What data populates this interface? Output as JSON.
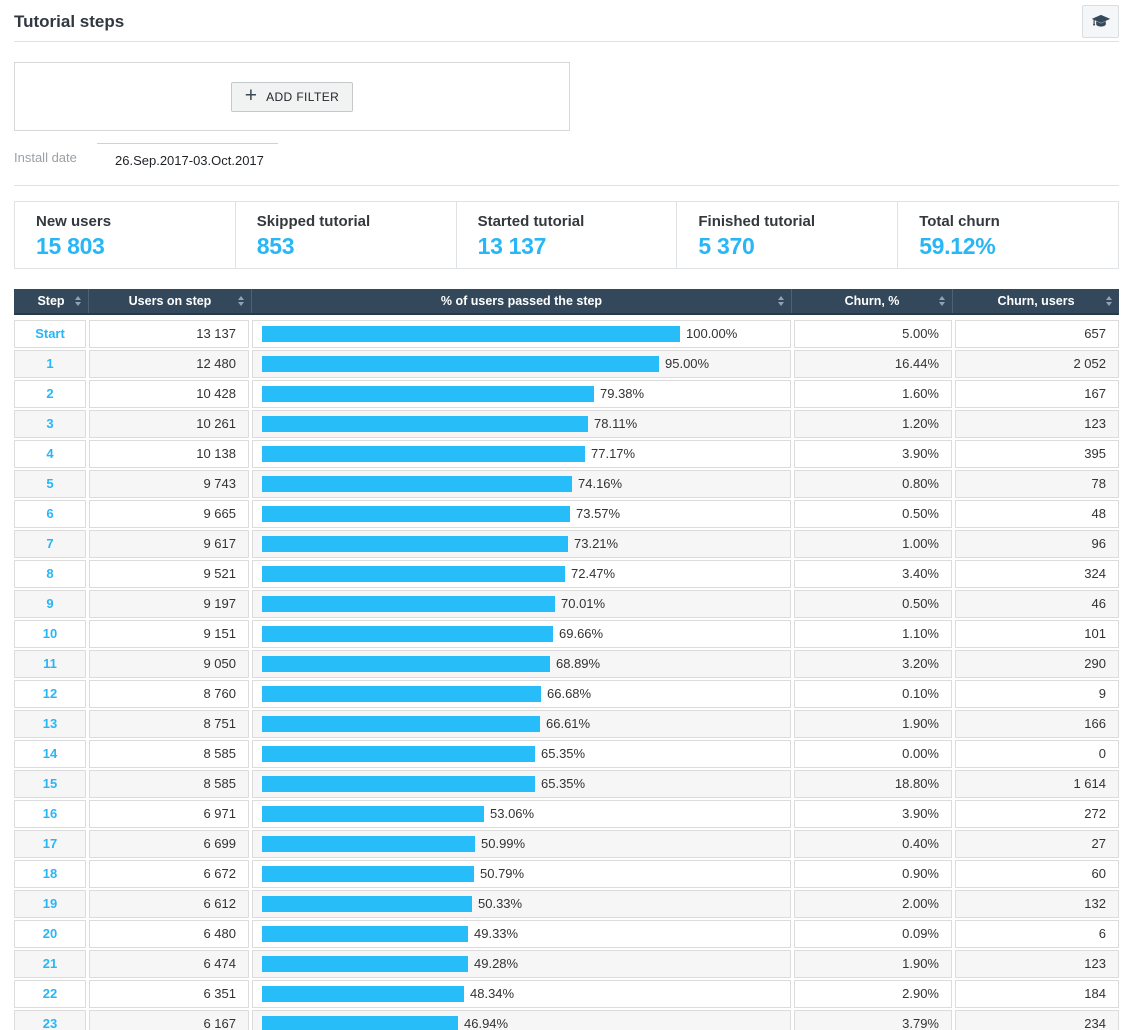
{
  "header": {
    "title": "Tutorial steps",
    "help_icon": "graduation-cap"
  },
  "filters": {
    "add_filter": "ADD FILTER",
    "install_date": {
      "label": "Install date",
      "value": "26.Sep.2017-03.Oct.2017"
    }
  },
  "summary_cards": [
    {
      "label": "New users",
      "value": "15 803"
    },
    {
      "label": "Skipped tutorial",
      "value": "853"
    },
    {
      "label": "Started tutorial",
      "value": "13 137"
    },
    {
      "label": "Finished tutorial",
      "value": "5 370"
    },
    {
      "label": "Total churn",
      "value": "59.12%"
    }
  ],
  "table": {
    "columns": [
      {
        "label": "Step"
      },
      {
        "label": "Users on step"
      },
      {
        "label": "% of users passed the step"
      },
      {
        "label": "Churn, %"
      },
      {
        "label": "Churn, users"
      }
    ],
    "rows": [
      {
        "step": "Start",
        "users_on_step": "13 137",
        "passed_pct": 100.0,
        "passed_label": "100.00%",
        "churn_pct": "5.00%",
        "churn_users": "657"
      },
      {
        "step": "1",
        "users_on_step": "12 480",
        "passed_pct": 95.0,
        "passed_label": "95.00%",
        "churn_pct": "16.44%",
        "churn_users": "2 052"
      },
      {
        "step": "2",
        "users_on_step": "10 428",
        "passed_pct": 79.38,
        "passed_label": "79.38%",
        "churn_pct": "1.60%",
        "churn_users": "167"
      },
      {
        "step": "3",
        "users_on_step": "10 261",
        "passed_pct": 78.11,
        "passed_label": "78.11%",
        "churn_pct": "1.20%",
        "churn_users": "123"
      },
      {
        "step": "4",
        "users_on_step": "10 138",
        "passed_pct": 77.17,
        "passed_label": "77.17%",
        "churn_pct": "3.90%",
        "churn_users": "395"
      },
      {
        "step": "5",
        "users_on_step": "9 743",
        "passed_pct": 74.16,
        "passed_label": "74.16%",
        "churn_pct": "0.80%",
        "churn_users": "78"
      },
      {
        "step": "6",
        "users_on_step": "9 665",
        "passed_pct": 73.57,
        "passed_label": "73.57%",
        "churn_pct": "0.50%",
        "churn_users": "48"
      },
      {
        "step": "7",
        "users_on_step": "9 617",
        "passed_pct": 73.21,
        "passed_label": "73.21%",
        "churn_pct": "1.00%",
        "churn_users": "96"
      },
      {
        "step": "8",
        "users_on_step": "9 521",
        "passed_pct": 72.47,
        "passed_label": "72.47%",
        "churn_pct": "3.40%",
        "churn_users": "324"
      },
      {
        "step": "9",
        "users_on_step": "9 197",
        "passed_pct": 70.01,
        "passed_label": "70.01%",
        "churn_pct": "0.50%",
        "churn_users": "46"
      },
      {
        "step": "10",
        "users_on_step": "9 151",
        "passed_pct": 69.66,
        "passed_label": "69.66%",
        "churn_pct": "1.10%",
        "churn_users": "101"
      },
      {
        "step": "11",
        "users_on_step": "9 050",
        "passed_pct": 68.89,
        "passed_label": "68.89%",
        "churn_pct": "3.20%",
        "churn_users": "290"
      },
      {
        "step": "12",
        "users_on_step": "8 760",
        "passed_pct": 66.68,
        "passed_label": "66.68%",
        "churn_pct": "0.10%",
        "churn_users": "9"
      },
      {
        "step": "13",
        "users_on_step": "8 751",
        "passed_pct": 66.61,
        "passed_label": "66.61%",
        "churn_pct": "1.90%",
        "churn_users": "166"
      },
      {
        "step": "14",
        "users_on_step": "8 585",
        "passed_pct": 65.35,
        "passed_label": "65.35%",
        "churn_pct": "0.00%",
        "churn_users": "0"
      },
      {
        "step": "15",
        "users_on_step": "8 585",
        "passed_pct": 65.35,
        "passed_label": "65.35%",
        "churn_pct": "18.80%",
        "churn_users": "1 614"
      },
      {
        "step": "16",
        "users_on_step": "6 971",
        "passed_pct": 53.06,
        "passed_label": "53.06%",
        "churn_pct": "3.90%",
        "churn_users": "272"
      },
      {
        "step": "17",
        "users_on_step": "6 699",
        "passed_pct": 50.99,
        "passed_label": "50.99%",
        "churn_pct": "0.40%",
        "churn_users": "27"
      },
      {
        "step": "18",
        "users_on_step": "6 672",
        "passed_pct": 50.79,
        "passed_label": "50.79%",
        "churn_pct": "0.90%",
        "churn_users": "60"
      },
      {
        "step": "19",
        "users_on_step": "6 612",
        "passed_pct": 50.33,
        "passed_label": "50.33%",
        "churn_pct": "2.00%",
        "churn_users": "132"
      },
      {
        "step": "20",
        "users_on_step": "6 480",
        "passed_pct": 49.33,
        "passed_label": "49.33%",
        "churn_pct": "0.09%",
        "churn_users": "6"
      },
      {
        "step": "21",
        "users_on_step": "6 474",
        "passed_pct": 49.28,
        "passed_label": "49.28%",
        "churn_pct": "1.90%",
        "churn_users": "123"
      },
      {
        "step": "22",
        "users_on_step": "6 351",
        "passed_pct": 48.34,
        "passed_label": "48.34%",
        "churn_pct": "2.90%",
        "churn_users": "184"
      },
      {
        "step": "23",
        "users_on_step": "6 167",
        "passed_pct": 46.94,
        "passed_label": "46.94%",
        "churn_pct": "3.79%",
        "churn_users": "234"
      }
    ]
  },
  "colors": {
    "accent_blue": "#29b6f6",
    "bar_blue": "#27bdf8",
    "table_header_bg": "#33495b"
  }
}
